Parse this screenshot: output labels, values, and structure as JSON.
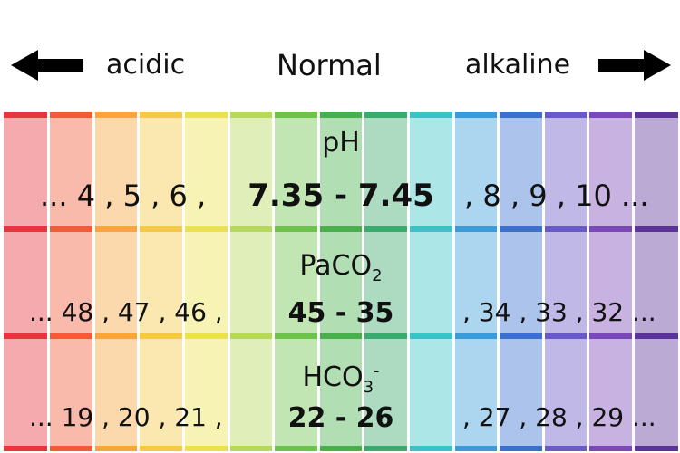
{
  "header": {
    "acidic_label": "acidic",
    "normal_label": "Normal",
    "alkaline_label": "alkaline"
  },
  "parameters": [
    {
      "name": "pH",
      "sub": "",
      "sup": "",
      "acidic": "... 4 , 5 , 6 ,",
      "normal": "7.35 - 7.45",
      "alkaline": ", 8 , 9 , 10 ..."
    },
    {
      "name": "PaCO",
      "sub": "2",
      "sup": "",
      "acidic": "... 48 , 47 , 46 ,",
      "normal": "45 - 35",
      "alkaline": ", 34 , 33 , 32 ..."
    },
    {
      "name": "HCO",
      "sub": "3",
      "sup": "-",
      "acidic": "... 19 , 20 , 21 ,",
      "normal": "22 - 26",
      "alkaline": ", 27 , 28 , 29 ..."
    }
  ],
  "colors": {
    "arrow": "#000000",
    "bands": [
      "#e8343f",
      "#f25a38",
      "#f9a53a",
      "#f6c944",
      "#e9e24d",
      "#b6d95a",
      "#6cc24a",
      "#47b04c",
      "#3aaa6e",
      "#39c3c4",
      "#3a9bd8",
      "#3a6fcf",
      "#6a59c9",
      "#7a48b8",
      "#5a3498"
    ]
  }
}
